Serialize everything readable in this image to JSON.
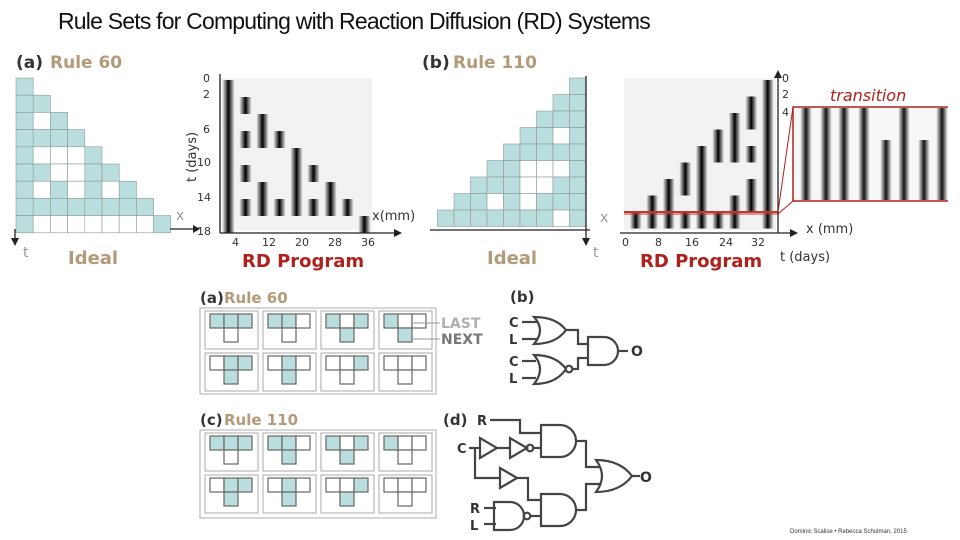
{
  "title": "Rule Sets for Computing with Reaction Diffusion (RD) Systems",
  "credit": "Dominic Scalise • Rebecca Schulman, 2015",
  "colors": {
    "cell": "#b9dedd",
    "grid": "#8a9c9a",
    "gold": "#b39a78",
    "red": "#b0201c",
    "dark": "#333333"
  },
  "top_panels": {
    "a": {
      "tag": "(a)",
      "rule": "Rule 60",
      "ideal": "Ideal",
      "rd_program": "RD Program",
      "x_axis": "x",
      "t_axis": "t",
      "t_label": "t (days)",
      "x_mm": "x(mm)",
      "t_ticks": [
        "0",
        "2",
        "6",
        "10",
        "14",
        "18"
      ],
      "x_ticks": [
        "4",
        "12",
        "20",
        "28",
        "36"
      ]
    },
    "b": {
      "tag": "(b)",
      "rule": "Rule 110",
      "ideal": "Ideal",
      "rd_program": "RD Program",
      "x_axis": "x",
      "t_axis": "t",
      "transition": "transition",
      "t_ticks": [
        "0",
        "2",
        "4"
      ],
      "x_ticks": [
        "0",
        "8",
        "16",
        "24",
        "32"
      ],
      "x_mm": "x (mm)",
      "t_days": "t (days)"
    }
  },
  "rules": {
    "a": {
      "tag": "(a)",
      "title": "Rule 60",
      "last": "LAST",
      "next": "NEXT"
    },
    "c": {
      "tag": "(c)",
      "title": "Rule 110"
    }
  },
  "circuits": {
    "b": {
      "tag": "(b)",
      "inputs": [
        "C",
        "L",
        "C",
        "L"
      ],
      "output": "O"
    },
    "d": {
      "tag": "(d)",
      "inputs": [
        "R",
        "C",
        "R",
        "L"
      ],
      "output": "O"
    }
  }
}
